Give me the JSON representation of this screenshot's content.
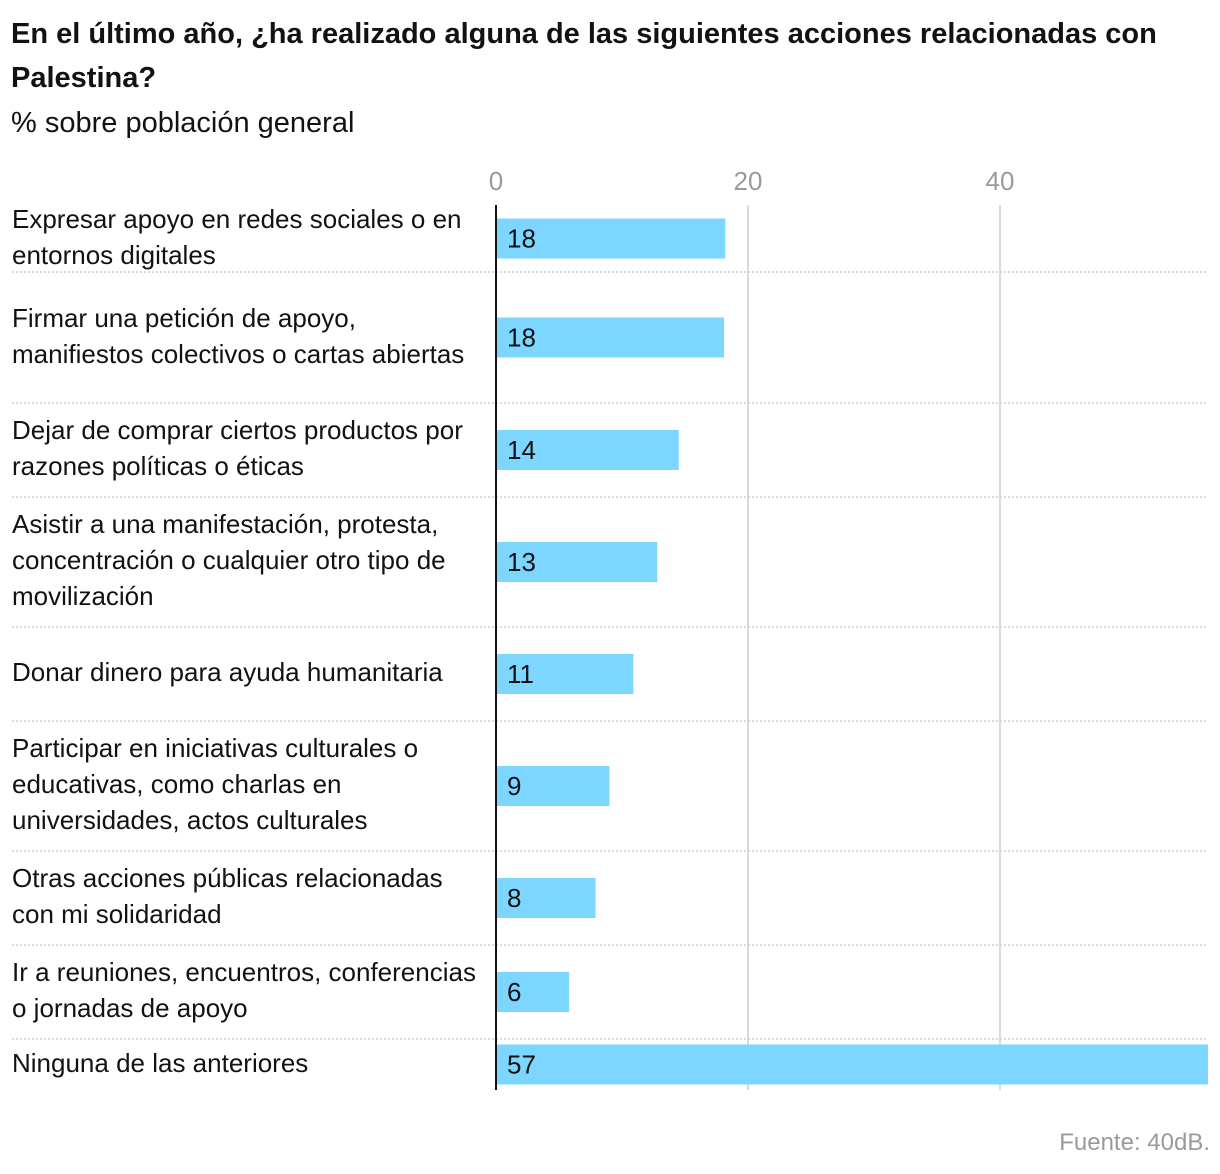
{
  "chart_data": {
    "type": "bar",
    "orientation": "horizontal",
    "title": "En el último año, ¿ha realizado alguna de las siguientes acciones relacionadas con Palestina?",
    "subtitle": "% sobre población general",
    "categories": [
      "Expresar apoyo en redes sociales o en entornos digitales",
      "Firmar una petición de apoyo, manifiestos colectivos o cartas abiertas",
      "Dejar de comprar ciertos productos por razones políticas o éticas",
      "Asistir a una manifestación, protesta, concentración o cualquier otro tipo de movilización",
      "Donar dinero para ayuda humanitaria",
      "Participar en iniciativas culturales o educativas, como charlas en universidades, actos culturales",
      "Otras acciones públicas relacionadas con mi solidaridad",
      "Ir a reuniones, encuentros, conferencias o jornadas de apoyo",
      "Ninguna de las anteriores"
    ],
    "values": [
      18.2,
      18.1,
      14.5,
      12.8,
      10.9,
      9.0,
      7.9,
      5.8,
      57
    ],
    "value_labels": [
      "18",
      "18",
      "14",
      "13",
      "11",
      "9",
      "8",
      "6",
      "57"
    ],
    "xticks": [
      0,
      20,
      40
    ],
    "xtick_labels": [
      "0",
      "20",
      "40"
    ],
    "xlim": [
      0,
      56.7
    ],
    "grid": true,
    "xlabel": "",
    "ylabel": "",
    "source": "Fuente: 40dB.",
    "colors": {
      "bar": "#7dd6ff",
      "text": "#121212",
      "tick": "#9a9a9a",
      "grid": "#dadada",
      "separator": "#cfcfcf",
      "axis": "#121212"
    }
  }
}
